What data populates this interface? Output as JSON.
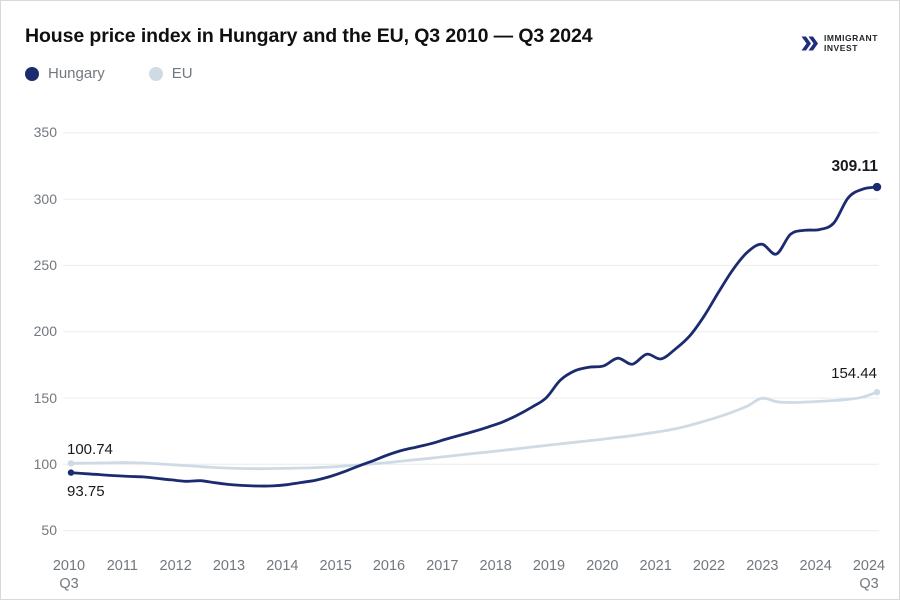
{
  "header": {
    "title": "House price index in Hungary and the EU, Q3 2010 — Q3 2024",
    "legend": [
      {
        "label": "Hungary",
        "color": "#1c2b6f"
      },
      {
        "label": "EU",
        "color": "#cfdbe4"
      }
    ],
    "logo": {
      "line1": "IMMIGRANT",
      "line2": "INVEST",
      "icon": "double-chevron-right-icon",
      "icon_color": "#1f2e7c"
    }
  },
  "chart_data": {
    "type": "line",
    "title": "House price index in Hungary and the EU, Q3 2010 — Q3 2024",
    "x_label_note": "quarterly data from 2010 Q3 to 2024 Q3",
    "y_ticks": [
      50,
      100,
      150,
      200,
      250,
      300,
      350
    ],
    "ylim": [
      50,
      350
    ],
    "grid": "horizontal",
    "legend_position": "top-left",
    "x_ticks": [
      {
        "label": "2010",
        "sublabel": "Q3"
      },
      {
        "label": "2011"
      },
      {
        "label": "2012"
      },
      {
        "label": "2013"
      },
      {
        "label": "2014"
      },
      {
        "label": "2015"
      },
      {
        "label": "2016"
      },
      {
        "label": "2017"
      },
      {
        "label": "2018"
      },
      {
        "label": "2019"
      },
      {
        "label": "2020"
      },
      {
        "label": "2021"
      },
      {
        "label": "2022"
      },
      {
        "label": "2023"
      },
      {
        "label": "2024"
      },
      {
        "label": "2024",
        "sublabel": "Q3"
      }
    ],
    "series": [
      {
        "name": "EU",
        "color": "#cfdbe4",
        "start_value": 100.74,
        "end_value": 154.44,
        "values": [
          100.74,
          100.9,
          101.0,
          101.2,
          101.3,
          101.0,
          100.4,
          99.7,
          99.0,
          98.3,
          97.6,
          97.1,
          96.8,
          96.7,
          96.8,
          97.0,
          97.2,
          97.5,
          98.0,
          98.7,
          99.5,
          100.4,
          101.3,
          102.4,
          103.5,
          104.6,
          105.8,
          107.0,
          108.2,
          109.3,
          110.5,
          111.7,
          113.0,
          114.2,
          115.4,
          116.6,
          117.8,
          119.0,
          120.3,
          121.6,
          123.2,
          124.8,
          126.8,
          129.4,
          132.5,
          135.8,
          139.6,
          144.0,
          149.8,
          147.3,
          146.6,
          146.9,
          147.4,
          148.1,
          149.0,
          150.6,
          154.44
        ]
      },
      {
        "name": "Hungary",
        "color": "#1c2b6f",
        "start_value": 93.75,
        "end_value": 309.11,
        "values": [
          93.75,
          92.9,
          92.2,
          91.5,
          90.9,
          90.5,
          89.4,
          88.2,
          87.2,
          87.6,
          86.1,
          84.8,
          84.0,
          83.6,
          83.7,
          84.6,
          86.3,
          88.0,
          90.8,
          94.5,
          98.8,
          102.7,
          107.0,
          110.5,
          113.0,
          115.5,
          118.8,
          121.8,
          124.8,
          128.2,
          132.0,
          137.0,
          143.0,
          150.0,
          163.5,
          170.5,
          173.2,
          174.2,
          180.0,
          175.5,
          183.0,
          179.5,
          187.0,
          197.0,
          212.0,
          230.0,
          247.0,
          260.0,
          266.0,
          258.5,
          273.5,
          276.5,
          277.0,
          282.0,
          301.0,
          307.5,
          309.11
        ]
      }
    ],
    "annotations": {
      "hungary_start": "93.75",
      "hungary_end": "309.11",
      "eu_start": "100.74",
      "eu_end": "154.44"
    },
    "colors": {
      "grid": "#ececec",
      "axis_text": "#72787f",
      "title_text": "#0f1012"
    }
  }
}
